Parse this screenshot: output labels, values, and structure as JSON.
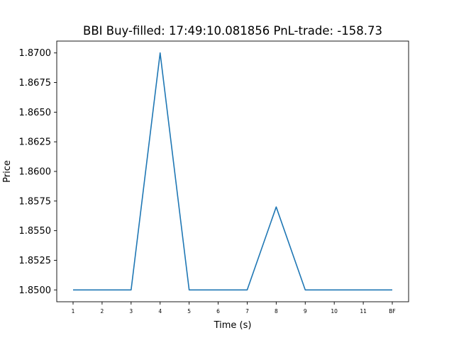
{
  "chart_data": {
    "type": "line",
    "title": "BBI  Buy-filled:  17:49:10.081856  PnL-trade:  -158.73",
    "xlabel": "Time (s)",
    "ylabel": "Price",
    "categories": [
      "1",
      "2",
      "3",
      "4",
      "5",
      "6",
      "7",
      "8",
      "9",
      "10",
      "11",
      "BF"
    ],
    "series": [
      {
        "values": [
          1.85,
          1.85,
          1.85,
          1.87,
          1.85,
          1.85,
          1.85,
          1.857,
          1.85,
          1.85,
          1.85,
          1.85
        ],
        "color": "#1f77b4"
      }
    ],
    "ylim": [
      1.849,
      1.871
    ],
    "yticks": [
      1.85,
      1.8525,
      1.855,
      1.8575,
      1.86,
      1.8625,
      1.865,
      1.8675,
      1.87
    ],
    "ytick_labels": [
      "1.8500",
      "1.8525",
      "1.8550",
      "1.8575",
      "1.8600",
      "1.8625",
      "1.8650",
      "1.8675",
      "1.8700"
    ],
    "grid": false,
    "legend": false
  }
}
